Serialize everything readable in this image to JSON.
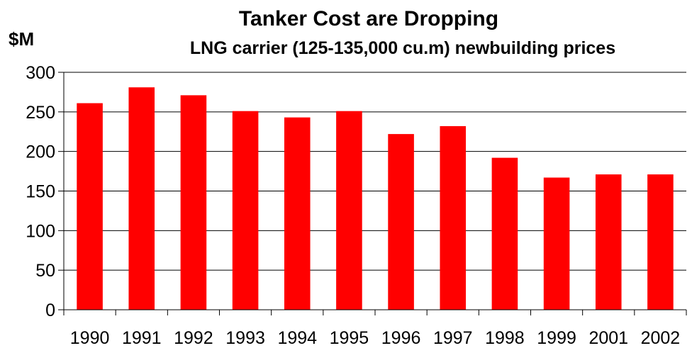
{
  "chart_data": {
    "type": "bar",
    "title": "Tanker Cost are Dropping",
    "subtitle": "LNG carrier (125-135,000 cu.m) newbuilding prices",
    "ylabel": "$M",
    "xlabel": "",
    "categories": [
      "1990",
      "1991",
      "1992",
      "1993",
      "1994",
      "1995",
      "1996",
      "1997",
      "1998",
      "1999",
      "2001",
      "2002"
    ],
    "values": [
      261,
      281,
      271,
      251,
      243,
      251,
      222,
      232,
      192,
      167,
      171,
      171
    ],
    "ylim": [
      0,
      300
    ],
    "yticks": [
      "0",
      "50",
      "100",
      "150",
      "200",
      "250",
      "300"
    ],
    "grid": true,
    "legend": "none",
    "bar_color": "#ff0000"
  }
}
